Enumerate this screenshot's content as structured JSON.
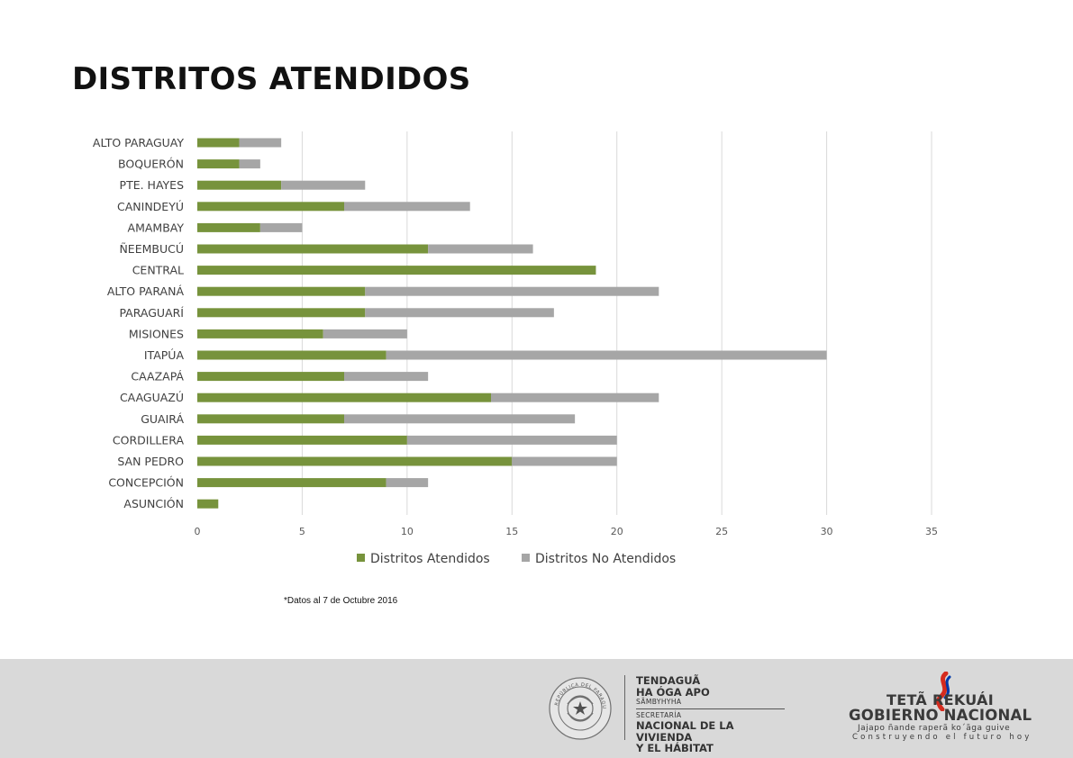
{
  "page": {
    "title": "DISTRITOS ATENDIDOS",
    "footnote": "*Datos al 7 de Octubre 2016"
  },
  "chart_data": {
    "type": "bar",
    "orientation": "horizontal",
    "stacked": true,
    "categories": [
      "ALTO PARAGUAY",
      "BOQUERÓN",
      "PTE. HAYES",
      "CANINDEYÚ",
      "AMAMBAY",
      "ÑEEMBUCÚ",
      "CENTRAL",
      "ALTO PARANÁ",
      "PARAGUARÍ",
      "MISIONES",
      "ITAPÚA",
      "CAAZAPÁ",
      "CAAGUAZÚ",
      "GUAIRÁ",
      "CORDILLERA",
      "SAN PEDRO",
      "CONCEPCIÓN",
      "ASUNCIÓN"
    ],
    "series": [
      {
        "name": "Distritos Atendidos",
        "color": "#77933c",
        "values": [
          2,
          2,
          4,
          7,
          3,
          11,
          19,
          8,
          8,
          6,
          9,
          7,
          14,
          7,
          10,
          15,
          9,
          1
        ]
      },
      {
        "name": "Distritos No Atendidos",
        "color": "#a6a6a6",
        "values": [
          2,
          1,
          4,
          6,
          2,
          5,
          0,
          14,
          9,
          4,
          21,
          4,
          8,
          11,
          10,
          5,
          2,
          0
        ]
      }
    ],
    "xlim": [
      0,
      35
    ],
    "xticks": [
      0,
      5,
      10,
      15,
      20,
      25,
      30,
      35
    ],
    "grid": true,
    "legend_position": "bottom"
  },
  "footer": {
    "seal_text": "REPÚBLICA DEL PARAGUAY",
    "ministry": {
      "line1": "TENDAGUÃ",
      "line2": "HA ÓGA APO",
      "line3": "SÃMBYHYHA",
      "line4": "SECRETARÍA",
      "line5": "NACIONAL DE LA VIVIENDA",
      "line6": "Y EL HÁBITAT"
    },
    "government": {
      "line1": "TETÃ REKUÁI",
      "line2": "GOBIERNO NACIONAL",
      "line3": "Jajapo ñande raperã ko´ãga guive",
      "line4": "Construyendo el futuro hoy"
    },
    "colors": {
      "red": "#d52b1e",
      "blue": "#0038a8"
    }
  }
}
